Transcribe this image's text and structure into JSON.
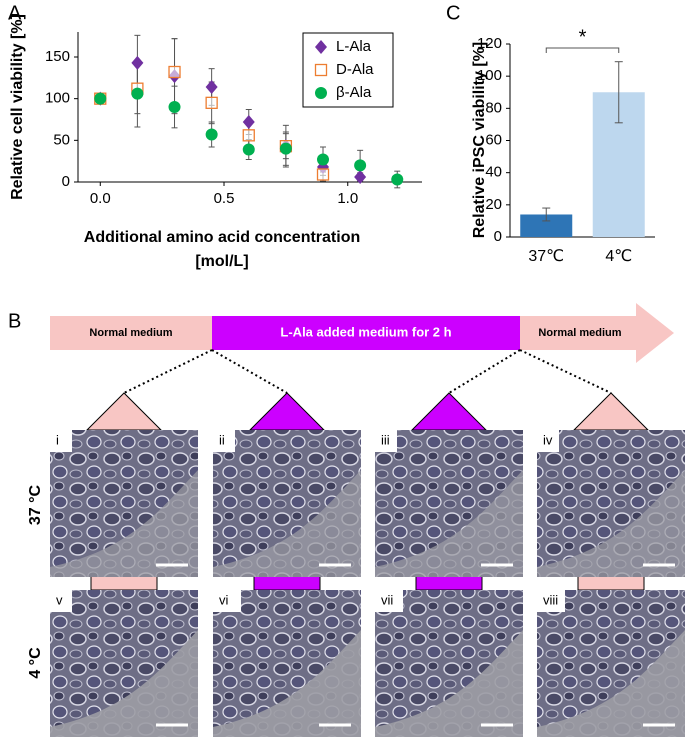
{
  "panel_labels": [
    "A",
    "C",
    "B"
  ],
  "chart_data": [
    {
      "type": "scatter",
      "ylabel": "Relative cell viability [%]",
      "xlabel": [
        "Additional amino acid concentration",
        "[mol/L]"
      ],
      "xlim": [
        -0.09,
        1.3
      ],
      "xticks": [
        {
          "value": 0,
          "label": "0.0"
        },
        0.5,
        {
          "value": 1,
          "label": "1.0"
        }
      ],
      "ylim": [
        0,
        180
      ],
      "yticks": [
        0,
        50,
        100,
        150
      ],
      "legend": "top-right",
      "series": [
        {
          "name": "L-Ala",
          "color": "#7030a0",
          "marker": "diamond",
          "x": [
            0,
            0.15,
            0.3,
            0.45,
            0.6,
            0.75,
            0.9,
            1.05
          ],
          "values": [
            100,
            143,
            127,
            114,
            72,
            43,
            18,
            6
          ],
          "errors": [
            4,
            33,
            45,
            22,
            15,
            25,
            10,
            5
          ]
        },
        {
          "name": "D-Ala",
          "color": "#ed7d31",
          "marker": "square",
          "x": [
            0,
            0.15,
            0.3,
            0.45,
            0.6,
            0.75,
            0.9
          ],
          "values": [
            100,
            112,
            132,
            95,
            56,
            43,
            9
          ],
          "errors": [
            5,
            30,
            40,
            25,
            15,
            15,
            8
          ]
        },
        {
          "name": "β-Ala",
          "color": "#00b050",
          "marker": "circle",
          "x": [
            0,
            0.15,
            0.3,
            0.45,
            0.6,
            0.75,
            0.9,
            1.05,
            1.2
          ],
          "values": [
            100,
            106,
            90,
            57,
            39,
            40,
            27,
            20,
            3
          ],
          "errors": [
            5,
            40,
            25,
            15,
            12,
            20,
            15,
            18,
            10
          ]
        }
      ]
    },
    {
      "type": "bar",
      "ylabel": "Relative iPSC viability [%]",
      "categories": [
        "37℃",
        "4℃"
      ],
      "values": [
        14,
        90
      ],
      "errors": [
        4,
        19
      ],
      "colors": [
        "#2e75b6",
        "#bdd7ee"
      ],
      "ylim": [
        0,
        120
      ],
      "yticks": [
        0,
        20,
        40,
        60,
        80,
        100,
        120
      ],
      "significance": "*"
    }
  ],
  "panel_b": {
    "timeline": [
      "Normal medium",
      "L-Ala added medium for 2 h",
      "Normal medium"
    ],
    "row_labels": [
      "37 °C",
      "4 °C"
    ],
    "image_labels": [
      [
        "i",
        "ii",
        "iii",
        "iv"
      ],
      [
        "v",
        "vi",
        "vii",
        "viii"
      ]
    ]
  }
}
